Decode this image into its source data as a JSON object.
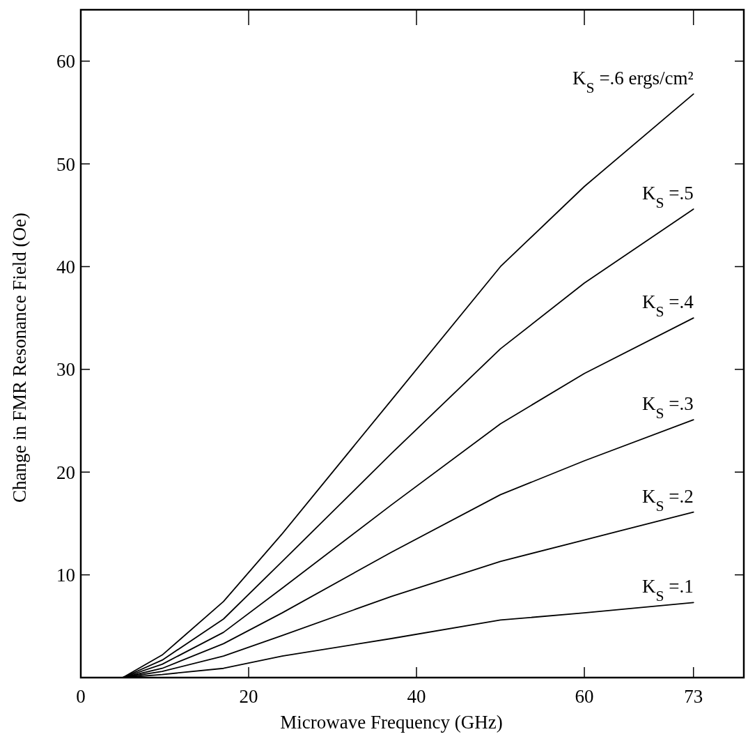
{
  "chart_data": {
    "type": "line",
    "xlabel": "Microwave Frequency (GHz)",
    "ylabel": "Change in FMR Resonance Field (Oe)",
    "xlim": [
      0,
      79
    ],
    "xticks": [
      0,
      20,
      40,
      60,
      73
    ],
    "ylim": [
      0,
      65
    ],
    "yticks": [
      10,
      20,
      30,
      40,
      50,
      60
    ],
    "grid": false,
    "marker": "none",
    "line_style": "solid",
    "x": [
      0,
      5,
      9.7,
      17,
      24,
      37,
      50,
      60,
      73
    ],
    "series": [
      {
        "name": "K$_{S}$ =.6 ergs/cm²",
        "color": "#000000",
        "values": [
          0,
          0,
          2.2,
          7.4,
          14,
          27,
          40,
          47.8,
          56.8
        ]
      },
      {
        "name": "K$_{S}$ =.5",
        "color": "#000000",
        "values": [
          0,
          0,
          1.7,
          5.7,
          11.3,
          21.8,
          32,
          38.4,
          45.6
        ]
      },
      {
        "name": "K$_{S}$ =.4",
        "color": "#000000",
        "values": [
          0,
          0,
          1.3,
          4.4,
          8.7,
          16.8,
          24.7,
          29.6,
          35
        ]
      },
      {
        "name": "K$_{S}$ =.3",
        "color": "#000000",
        "values": [
          0,
          0,
          0.9,
          3.3,
          6.3,
          12.2,
          17.8,
          21.1,
          25.1
        ]
      },
      {
        "name": "K$_{S}$ =.2",
        "color": "#000000",
        "values": [
          0,
          0,
          0.6,
          2.1,
          4.1,
          7.9,
          11.3,
          13.4,
          16.1
        ]
      },
      {
        "name": "K$_{S}$ =.1",
        "color": "#000000",
        "values": [
          0,
          0,
          0.3,
          0.9,
          2.1,
          3.8,
          5.6,
          6.3,
          7.3
        ]
      }
    ]
  }
}
